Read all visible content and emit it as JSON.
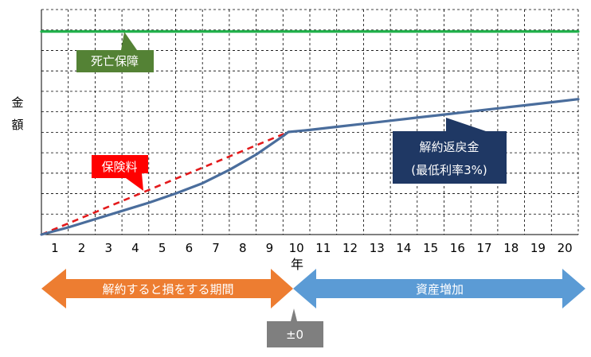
{
  "chart_data": {
    "type": "line",
    "ylabel": "金額",
    "xlabel": "年",
    "categories": [
      "1",
      "2",
      "3",
      "4",
      "5",
      "6",
      "7",
      "8",
      "9",
      "10",
      "11",
      "12",
      "13",
      "14",
      "15",
      "16",
      "17",
      "18",
      "19",
      "20"
    ],
    "x_range": [
      0,
      20
    ],
    "y_range": [
      0,
      100
    ],
    "grid": true,
    "series": [
      {
        "name": "死亡保障",
        "color": "#22b14c",
        "style": "solid",
        "points": [
          [
            0,
            99
          ],
          [
            20,
            99
          ]
        ]
      },
      {
        "name": "保険料",
        "color": "#e31a1c",
        "style": "dashed",
        "points": [
          [
            0,
            0
          ],
          [
            9.2,
            50
          ]
        ]
      },
      {
        "name": "解約返戻金",
        "color": "#4a6d9c",
        "style": "solid",
        "points": [
          [
            0,
            0
          ],
          [
            1,
            3.5
          ],
          [
            2,
            7.5
          ],
          [
            3,
            11.5
          ],
          [
            4,
            15.5
          ],
          [
            5,
            20
          ],
          [
            6,
            25
          ],
          [
            7,
            31.5
          ],
          [
            8,
            39
          ],
          [
            9,
            48
          ],
          [
            9.2,
            50
          ],
          [
            10,
            51
          ],
          [
            11,
            52.5
          ],
          [
            12,
            54
          ],
          [
            13,
            55.5
          ],
          [
            14,
            57
          ],
          [
            15,
            58.5
          ],
          [
            16,
            60
          ],
          [
            17,
            61.5
          ],
          [
            18,
            63
          ],
          [
            19,
            64.5
          ],
          [
            20,
            66
          ]
        ]
      }
    ]
  },
  "callouts": {
    "death_benefit": "死亡保障",
    "premium": "保険料",
    "surrender_line1": "解約返戻金",
    "surrender_line2": "(最低利率3%)"
  },
  "phases": {
    "loss_period": "解約すると損をする期間",
    "asset_growth": "資産増加",
    "breakeven": "±0"
  },
  "colors": {
    "death_box": "#548235",
    "premium_box": "#ff0000",
    "surrender_box": "#1f3864",
    "loss_arrow": "#ed7d31",
    "growth_arrow": "#5b9bd5",
    "breakeven_box": "#7f7f7f"
  }
}
